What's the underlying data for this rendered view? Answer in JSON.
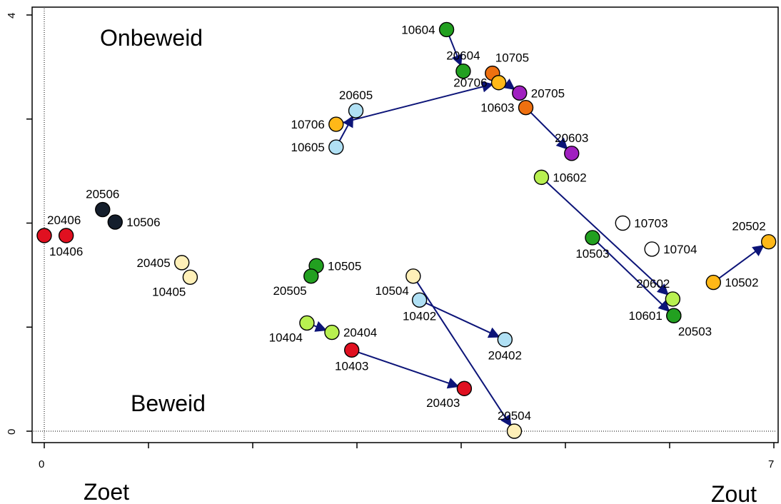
{
  "chart_data": {
    "type": "scatter",
    "xlim": [
      0,
      7
    ],
    "ylim": [
      0,
      4
    ],
    "x_ticks": [
      {
        "value": 0,
        "label": "0"
      },
      {
        "value": 1,
        "label": ""
      },
      {
        "value": 2,
        "label": ""
      },
      {
        "value": 3,
        "label": ""
      },
      {
        "value": 4,
        "label": ""
      },
      {
        "value": 5,
        "label": ""
      },
      {
        "value": 6,
        "label": ""
      },
      {
        "value": 7,
        "label": "7"
      }
    ],
    "y_ticks": [
      {
        "value": 0,
        "label": "0"
      },
      {
        "value": 1,
        "label": ""
      },
      {
        "value": 2,
        "label": ""
      },
      {
        "value": 3,
        "label": ""
      },
      {
        "value": 4,
        "label": "4"
      }
    ],
    "reference_lines": {
      "x": 0,
      "y": 0,
      "style": "dotted"
    },
    "annotations": {
      "top_left": "Onbeweid",
      "bottom_left": "Beweid",
      "x_left": "Zoet",
      "x_right": "Zout"
    },
    "points": [
      {
        "id": "10604",
        "x": 3.86,
        "y": 3.86,
        "color": "#22a020",
        "anchor": "left"
      },
      {
        "id": "20604",
        "x": 4.02,
        "y": 3.46,
        "color": "#22a020",
        "anchor": "above"
      },
      {
        "id": "10705",
        "x": 4.3,
        "y": 3.44,
        "color": "#ee7010",
        "anchor": "above-right"
      },
      {
        "id": "20706",
        "x": 4.36,
        "y": 3.35,
        "color": "#ffb818",
        "anchor": "left"
      },
      {
        "id": "20705",
        "x": 4.56,
        "y": 3.25,
        "color": "#a020c0",
        "anchor": "right"
      },
      {
        "id": "10603",
        "x": 4.62,
        "y": 3.11,
        "color": "#ee7010",
        "anchor": "left"
      },
      {
        "id": "20603",
        "x": 5.06,
        "y": 2.67,
        "color": "#a020c0",
        "anchor": "above"
      },
      {
        "id": "10602",
        "x": 4.77,
        "y": 2.44,
        "color": "#b8f050",
        "anchor": "right"
      },
      {
        "id": "20605",
        "x": 2.99,
        "y": 3.08,
        "color": "#b0e0f4",
        "anchor": "above"
      },
      {
        "id": "10706",
        "x": 2.8,
        "y": 2.95,
        "color": "#ffb818",
        "anchor": "left"
      },
      {
        "id": "10605",
        "x": 2.8,
        "y": 2.73,
        "color": "#b0e0f4",
        "anchor": "left"
      },
      {
        "id": "20506",
        "x": 0.56,
        "y": 2.13,
        "color": "#141e2c",
        "anchor": "above"
      },
      {
        "id": "10506",
        "x": 0.68,
        "y": 2.01,
        "color": "#141e2c",
        "anchor": "right"
      },
      {
        "id": "20406",
        "x": 0.0,
        "y": 1.88,
        "color": "#e01020",
        "anchor": "above-right"
      },
      {
        "id": "10406",
        "x": 0.21,
        "y": 1.88,
        "color": "#e01020",
        "anchor": "below"
      },
      {
        "id": "20405",
        "x": 1.32,
        "y": 1.62,
        "color": "#fff0b8",
        "anchor": "left"
      },
      {
        "id": "10405",
        "x": 1.4,
        "y": 1.48,
        "color": "#fff0b8",
        "anchor": "below-left"
      },
      {
        "id": "10505",
        "x": 2.61,
        "y": 1.59,
        "color": "#22a020",
        "anchor": "right"
      },
      {
        "id": "20505",
        "x": 2.56,
        "y": 1.49,
        "color": "#22a020",
        "anchor": "below-left"
      },
      {
        "id": "10504",
        "x": 3.54,
        "y": 1.49,
        "color": "#fff0b8",
        "anchor": "below-left"
      },
      {
        "id": "10402",
        "x": 3.6,
        "y": 1.26,
        "color": "#b0e0f4",
        "anchor": "below"
      },
      {
        "id": "20402",
        "x": 4.42,
        "y": 0.88,
        "color": "#b0e0f4",
        "anchor": "below"
      },
      {
        "id": "10404",
        "x": 2.52,
        "y": 1.04,
        "color": "#b8f050",
        "anchor": "below-left"
      },
      {
        "id": "20404",
        "x": 2.76,
        "y": 0.95,
        "color": "#b8f050",
        "anchor": "right"
      },
      {
        "id": "10403",
        "x": 2.95,
        "y": 0.78,
        "color": "#e01020",
        "anchor": "below"
      },
      {
        "id": "20403",
        "x": 4.03,
        "y": 0.41,
        "color": "#e01020",
        "anchor": "below-left"
      },
      {
        "id": "20504",
        "x": 4.51,
        "y": 0.0,
        "color": "#fff0b8",
        "anchor": "above"
      },
      {
        "id": "10703",
        "x": 5.55,
        "y": 2.0,
        "color": "#ffffff",
        "anchor": "right"
      },
      {
        "id": "10704",
        "x": 5.83,
        "y": 1.75,
        "color": "#ffffff",
        "anchor": "right"
      },
      {
        "id": "10503",
        "x": 5.26,
        "y": 1.86,
        "color": "#22a020",
        "anchor": "below"
      },
      {
        "id": "20602",
        "x": 6.03,
        "y": 1.27,
        "color": "#b8f050",
        "anchor": "above-left"
      },
      {
        "id": "10601",
        "x": 6.04,
        "y": 1.11,
        "color": "#22a020",
        "anchor": "left"
      },
      {
        "id": "20503",
        "x": 6.04,
        "y": 1.11,
        "color": "#22a020",
        "anchor": "below-right"
      },
      {
        "id": "10502",
        "x": 6.42,
        "y": 1.43,
        "color": "#ffb818",
        "anchor": "right"
      },
      {
        "id": "20502",
        "x": 6.95,
        "y": 1.82,
        "color": "#ffb818",
        "anchor": "above-left"
      }
    ],
    "arrows": [
      {
        "from": "10604",
        "to": "20604"
      },
      {
        "from": "10605",
        "to": "20605"
      },
      {
        "from": "10706",
        "to": "20706"
      },
      {
        "from": "10705",
        "to": "20705"
      },
      {
        "from": "10603",
        "to": "20603"
      },
      {
        "from": "10602",
        "to": "20602"
      },
      {
        "from": "10503",
        "to": "20503"
      },
      {
        "from": "10502",
        "to": "20502"
      },
      {
        "from": "10404",
        "to": "20404"
      },
      {
        "from": "10403",
        "to": "20403"
      },
      {
        "from": "10402",
        "to": "20402"
      },
      {
        "from": "10504",
        "to": "20504"
      }
    ],
    "arrow_color": "#0c1478",
    "axis_color": "#000000"
  }
}
